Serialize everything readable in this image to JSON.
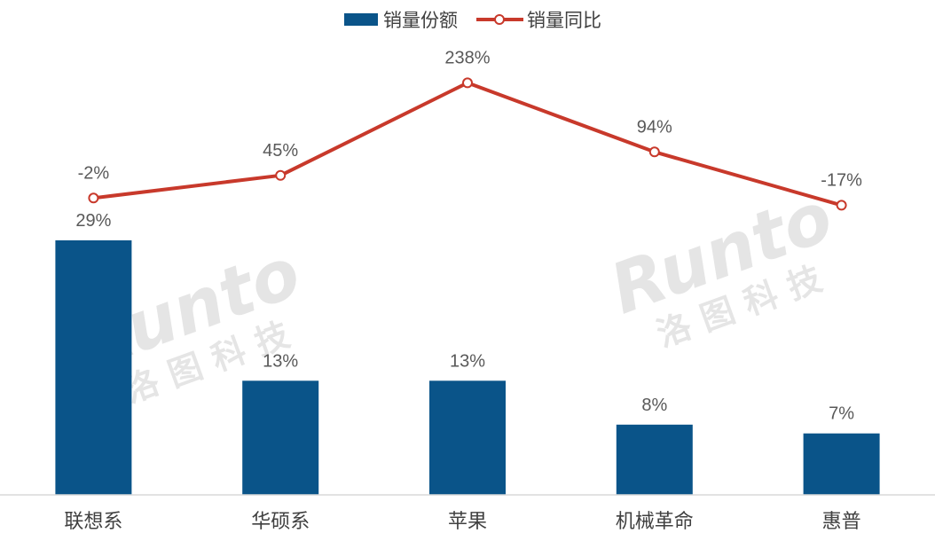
{
  "chart_data": {
    "type": "bar",
    "categories": [
      "联想系",
      "华硕系",
      "苹果",
      "机械革命",
      "惠普"
    ],
    "series": [
      {
        "name": "销量份额",
        "type": "bar",
        "values": [
          29,
          13,
          13,
          8,
          7
        ],
        "labels": [
          "29%",
          "13%",
          "13%",
          "8%",
          "7%"
        ],
        "color": "#0a5489"
      },
      {
        "name": "销量同比",
        "type": "line",
        "values": [
          -2,
          45,
          238,
          94,
          -17
        ],
        "labels": [
          "-2%",
          "45%",
          "238%",
          "94%",
          "-17%"
        ],
        "color": "#c8392b"
      }
    ],
    "legend_position": "top-center",
    "grid": false
  },
  "watermark": {
    "brand": "Runto",
    "chinese": "洛图科技"
  }
}
